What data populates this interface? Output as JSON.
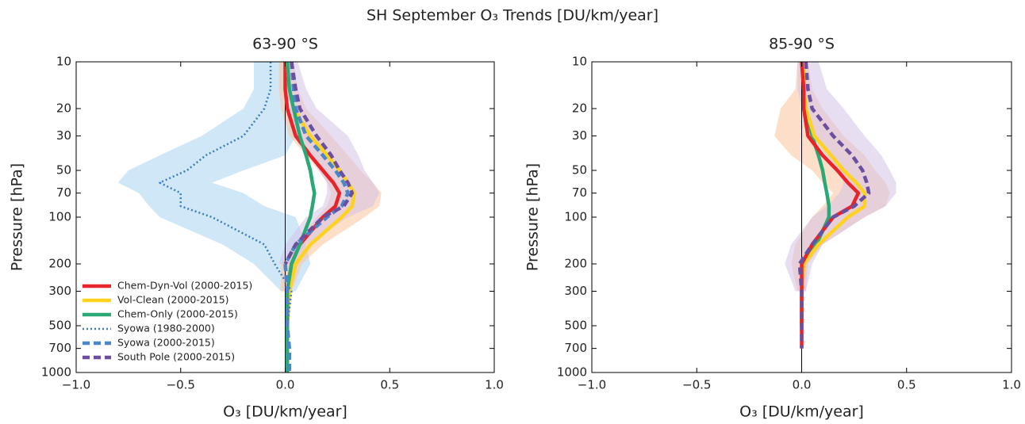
{
  "title": "SH September O₃ Trends [DU/km/year]",
  "chart_data": [
    {
      "type": "line",
      "title": "63-90 °S",
      "xlabel": "O₃ [DU/km/year]",
      "ylabel": "Pressure [hPa]",
      "yscale": "log",
      "xlim": [
        -1,
        1
      ],
      "ylim": [
        1000,
        10
      ],
      "xticks": [
        {
          "value": -1,
          "label": "−1.0"
        },
        {
          "value": -0.5,
          "label": "−0.5"
        },
        {
          "value": 0,
          "label": "0.0"
        },
        {
          "value": 0.5,
          "label": "0.5"
        },
        {
          "value": 1,
          "label": "1.0"
        }
      ],
      "yticks": [
        10,
        20,
        30,
        50,
        70,
        100,
        200,
        300,
        500,
        700,
        1000
      ],
      "zero_line": true,
      "legend": "lower left",
      "y": [
        10,
        15,
        20,
        30,
        40,
        50,
        60,
        70,
        85,
        100,
        150,
        200,
        300,
        500,
        700,
        1000
      ],
      "bands": [
        {
          "color": "#a9d4f3",
          "lower": [
            -0.15,
            -0.15,
            -0.2,
            -0.4,
            -0.6,
            -0.75,
            -0.8,
            -0.7,
            -0.65,
            -0.6,
            -0.3,
            -0.15,
            -0.02,
            null,
            null,
            null
          ],
          "upper": [
            0.0,
            0.0,
            0.0,
            0.05,
            0.0,
            -0.2,
            -0.35,
            -0.2,
            -0.1,
            0.05,
            0.1,
            0.12,
            0.05,
            null,
            null,
            null
          ]
        },
        {
          "color": "#fbc39c",
          "lower": [
            -0.03,
            -0.03,
            -0.02,
            0.02,
            0.1,
            0.16,
            0.2,
            0.22,
            0.2,
            0.15,
            0.04,
            -0.02,
            -0.02,
            null,
            null,
            null
          ],
          "upper": [
            0.04,
            0.06,
            0.1,
            0.22,
            0.3,
            0.36,
            0.42,
            0.46,
            0.45,
            0.38,
            0.18,
            0.08,
            0.03,
            null,
            null,
            null
          ]
        },
        {
          "color": "#d4c3e6",
          "lower": [
            0.0,
            0.0,
            0.0,
            0.05,
            0.12,
            0.16,
            0.2,
            0.2,
            0.18,
            0.1,
            0.0,
            -0.03,
            null,
            null,
            null,
            null
          ],
          "upper": [
            0.06,
            0.1,
            0.15,
            0.3,
            0.35,
            0.38,
            0.42,
            0.45,
            0.42,
            0.3,
            0.1,
            0.03,
            null,
            null,
            null,
            null
          ]
        }
      ],
      "series": [
        {
          "name": "Chem-Dyn-Vol (2000-2015)",
          "color": "#e8232a",
          "style": "solid",
          "values": [
            0.0,
            0.0,
            0.01,
            0.05,
            0.12,
            0.18,
            0.23,
            0.26,
            0.24,
            0.18,
            0.07,
            0.03,
            0.01,
            0.01,
            0.01,
            0.01
          ]
        },
        {
          "name": "Vol-Clean (2000-2015)",
          "color": "#ffd21f",
          "style": "solid",
          "values": [
            0.01,
            0.02,
            0.04,
            0.12,
            0.2,
            0.26,
            0.3,
            0.33,
            0.32,
            0.27,
            0.12,
            0.05,
            0.02,
            0.01,
            0.01,
            0.01
          ]
        },
        {
          "name": "Chem-Only (2000-2015)",
          "color": "#2aa876",
          "style": "solid",
          "values": [
            0.01,
            0.02,
            0.04,
            0.07,
            0.1,
            0.12,
            0.13,
            0.14,
            0.13,
            0.12,
            0.07,
            0.03,
            0.01,
            0.01,
            0.01,
            0.01
          ]
        },
        {
          "name": "Syowa (1980-2000)",
          "color": "#3a7ebf",
          "style": "dotted",
          "values": [
            -0.07,
            -0.07,
            -0.1,
            -0.2,
            -0.38,
            -0.47,
            -0.6,
            -0.5,
            -0.5,
            -0.35,
            -0.1,
            -0.05,
            0.03,
            0.01,
            null,
            null
          ]
        },
        {
          "name": "Syowa (2000-2015)",
          "color": "#4a86c8",
          "style": "dashed",
          "values": [
            0.03,
            0.04,
            0.05,
            0.1,
            0.18,
            0.24,
            0.28,
            0.3,
            0.27,
            0.2,
            0.05,
            0.0,
            0.01,
            0.01,
            0.02,
            0.02
          ]
        },
        {
          "name": "South Pole (2000-2015)",
          "color": "#6a4fa0",
          "style": "dashed",
          "values": [
            0.03,
            0.05,
            0.07,
            0.15,
            0.22,
            0.26,
            0.3,
            0.32,
            0.28,
            0.18,
            0.05,
            0.0,
            null,
            null,
            null,
            null
          ]
        }
      ]
    },
    {
      "type": "line",
      "title": "85-90 °S",
      "xlabel": "O₃ [DU/km/year]",
      "ylabel": "Pressure [hPa]",
      "yscale": "log",
      "xlim": [
        -1,
        1
      ],
      "ylim": [
        1000,
        10
      ],
      "xticks": [
        {
          "value": -1,
          "label": "−1.0"
        },
        {
          "value": -0.5,
          "label": "−0.5"
        },
        {
          "value": 0,
          "label": "0.0"
        },
        {
          "value": 0.5,
          "label": "0.5"
        },
        {
          "value": 1,
          "label": "1.0"
        }
      ],
      "yticks": [
        10,
        20,
        30,
        50,
        70,
        100,
        200,
        300,
        500,
        700,
        1000
      ],
      "zero_line": true,
      "y": [
        10,
        15,
        20,
        30,
        40,
        50,
        60,
        70,
        85,
        100,
        150,
        200,
        300,
        500,
        700,
        1000
      ],
      "bands": [
        {
          "color": "#fbc39c",
          "lower": [
            -0.02,
            -0.03,
            -0.1,
            -0.13,
            -0.05,
            0.05,
            0.1,
            0.15,
            0.1,
            0.05,
            -0.03,
            -0.05,
            -0.02,
            null,
            null,
            null
          ],
          "upper": [
            0.03,
            0.05,
            0.1,
            0.2,
            0.3,
            0.35,
            0.4,
            0.42,
            0.4,
            0.3,
            0.1,
            0.03,
            0.02,
            null,
            null,
            null
          ]
        },
        {
          "color": "#d4c3e6",
          "lower": [
            -0.02,
            -0.02,
            0.0,
            0.05,
            0.12,
            0.18,
            0.2,
            0.18,
            0.12,
            0.05,
            -0.05,
            -0.08,
            -0.03,
            null,
            null,
            null
          ],
          "upper": [
            0.08,
            0.12,
            0.2,
            0.3,
            0.38,
            0.42,
            0.45,
            0.45,
            0.4,
            0.3,
            0.1,
            0.05,
            0.02,
            null,
            null,
            null
          ]
        }
      ],
      "series": [
        {
          "color": "#2aa876",
          "style": "solid",
          "values": [
            0.01,
            0.01,
            0.02,
            0.05,
            0.08,
            0.1,
            0.11,
            0.12,
            0.13,
            0.13,
            0.07,
            0.01,
            0.0,
            0.0,
            null,
            null
          ]
        },
        {
          "color": "#ffd21f",
          "style": "solid",
          "values": [
            0.01,
            0.01,
            0.02,
            0.06,
            0.14,
            0.2,
            0.26,
            0.3,
            0.3,
            0.22,
            0.08,
            0.01,
            0.0,
            0.0,
            null,
            null
          ]
        },
        {
          "color": "#e8232a",
          "style": "solid",
          "values": [
            0.0,
            0.01,
            0.01,
            0.03,
            0.1,
            0.17,
            0.22,
            0.27,
            0.24,
            0.15,
            0.05,
            0.0,
            0.0,
            0.0,
            0.0,
            null
          ]
        },
        {
          "color": "#6a4fa0",
          "style": "dashed",
          "values": [
            0.02,
            0.03,
            0.05,
            0.15,
            0.24,
            0.29,
            0.31,
            0.32,
            0.25,
            0.15,
            0.05,
            -0.01,
            0.0,
            0.0,
            0.0,
            null
          ]
        }
      ]
    }
  ]
}
